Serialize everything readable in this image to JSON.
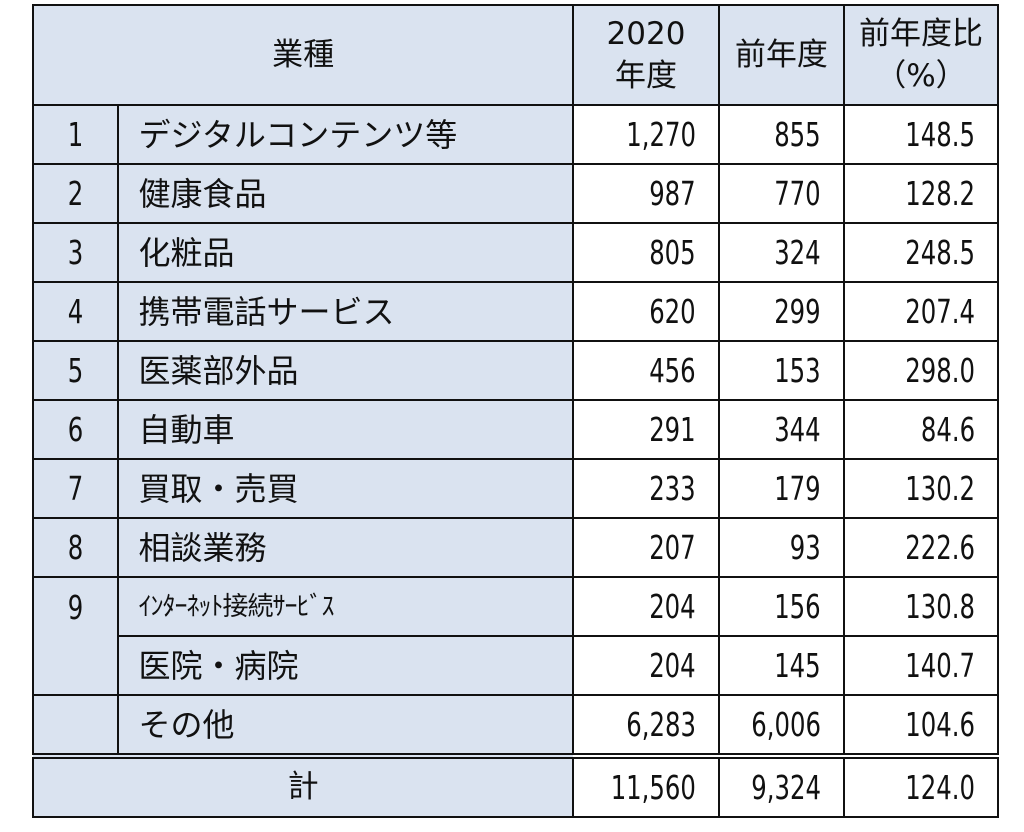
{
  "table": {
    "headers": {
      "category": "業種",
      "fy2020_line1": "2020",
      "fy2020_line2": "年度",
      "prev_year": "前年度",
      "ratio_line1": "前年度比",
      "ratio_line2": "（%）"
    },
    "rows": [
      {
        "rank": "1",
        "category": "デジタルコンテンツ等",
        "fy2020": "1,270",
        "prev": "855",
        "ratio": "148.5"
      },
      {
        "rank": "2",
        "category": "健康食品",
        "fy2020": "987",
        "prev": "770",
        "ratio": "128.2"
      },
      {
        "rank": "3",
        "category": "化粧品",
        "fy2020": "805",
        "prev": "324",
        "ratio": "248.5"
      },
      {
        "rank": "4",
        "category": "携帯電話サービス",
        "fy2020": "620",
        "prev": "299",
        "ratio": "207.4"
      },
      {
        "rank": "5",
        "category": "医薬部外品",
        "fy2020": "456",
        "prev": "153",
        "ratio": "298.0"
      },
      {
        "rank": "6",
        "category": "自動車",
        "fy2020": "291",
        "prev": "344",
        "ratio": "84.6"
      },
      {
        "rank": "7",
        "category": "買取・売買",
        "fy2020": "233",
        "prev": "179",
        "ratio": "130.2"
      },
      {
        "rank": "8",
        "category": "相談業務",
        "fy2020": "207",
        "prev": "93",
        "ratio": "222.6"
      },
      {
        "rank": "9",
        "category": "ｲﾝﾀｰﾈｯﾄ接続ｻｰﾋﾞｽ",
        "fy2020": "204",
        "prev": "156",
        "ratio": "130.8"
      },
      {
        "rank": "",
        "category": "医院・病院",
        "fy2020": "204",
        "prev": "145",
        "ratio": "140.7"
      },
      {
        "rank": "",
        "category": "その他",
        "fy2020": "6,283",
        "prev": "6,006",
        "ratio": "104.6"
      }
    ],
    "total": {
      "label": "計",
      "fy2020": "11,560",
      "prev": "9,324",
      "ratio": "124.0"
    }
  },
  "colors": {
    "header_bg": "#dae3f0",
    "value_bg": "#ffffff",
    "border": "#111111"
  }
}
